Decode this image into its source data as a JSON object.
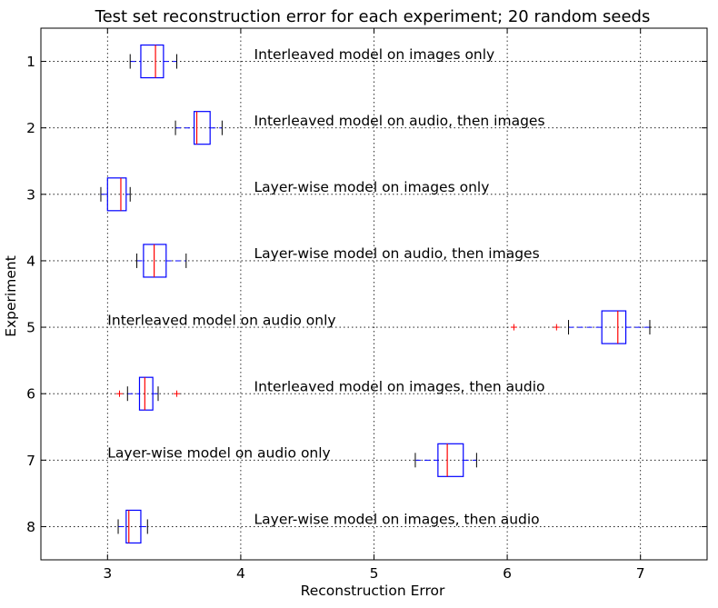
{
  "chart_data": {
    "type": "boxplot",
    "orientation": "horizontal",
    "title": "Test set reconstruction error for each experiment; 20 random seeds",
    "xlabel": "Reconstruction Error",
    "ylabel": "Experiment",
    "xlim": [
      2.5,
      7.5
    ],
    "ylim": [
      8.5,
      0.5
    ],
    "xticks": [
      "3",
      "4",
      "5",
      "6",
      "7"
    ],
    "yticks": [
      "1",
      "2",
      "3",
      "4",
      "5",
      "6",
      "7",
      "8"
    ],
    "grid": true,
    "colors": {
      "box": "#0000ff",
      "median": "#ff0000",
      "flier": "#ff0000"
    },
    "boxes": [
      {
        "experiment": 1,
        "whisker_low": 3.17,
        "q1": 3.25,
        "median": 3.36,
        "q3": 3.42,
        "whisker_high": 3.52,
        "fliers": []
      },
      {
        "experiment": 2,
        "whisker_low": 3.51,
        "q1": 3.65,
        "median": 3.67,
        "q3": 3.77,
        "whisker_high": 3.86,
        "fliers": []
      },
      {
        "experiment": 3,
        "whisker_low": 2.95,
        "q1": 3.0,
        "median": 3.1,
        "q3": 3.14,
        "whisker_high": 3.17,
        "fliers": []
      },
      {
        "experiment": 4,
        "whisker_low": 3.22,
        "q1": 3.27,
        "median": 3.35,
        "q3": 3.44,
        "whisker_high": 3.59,
        "fliers": []
      },
      {
        "experiment": 5,
        "whisker_low": 6.46,
        "q1": 6.71,
        "median": 6.83,
        "q3": 6.89,
        "whisker_high": 7.07,
        "fliers": [
          6.05,
          6.37
        ]
      },
      {
        "experiment": 6,
        "whisker_low": 3.15,
        "q1": 3.24,
        "median": 3.28,
        "q3": 3.34,
        "whisker_high": 3.38,
        "fliers": [
          3.09,
          3.52
        ]
      },
      {
        "experiment": 7,
        "whisker_low": 5.31,
        "q1": 5.48,
        "median": 5.55,
        "q3": 5.67,
        "whisker_high": 5.77,
        "fliers": []
      },
      {
        "experiment": 8,
        "whisker_low": 3.08,
        "q1": 3.14,
        "median": 3.16,
        "q3": 3.25,
        "whisker_high": 3.3,
        "fliers": []
      }
    ],
    "annotations": [
      {
        "text": "Interleaved model on images only",
        "x": 4.1,
        "y": 0.9
      },
      {
        "text": "Interleaved model on audio, then images",
        "x": 4.1,
        "y": 1.9
      },
      {
        "text": "Layer-wise model on images only",
        "x": 4.1,
        "y": 2.9
      },
      {
        "text": "Layer-wise model on audio, then images",
        "x": 4.1,
        "y": 3.9
      },
      {
        "text": "Interleaved model on audio only",
        "x": 3.0,
        "y": 4.9
      },
      {
        "text": "Interleaved model on images, then audio",
        "x": 4.1,
        "y": 5.9
      },
      {
        "text": "Layer-wise model on audio only",
        "x": 3.0,
        "y": 6.9
      },
      {
        "text": "Layer-wise model on images, then audio",
        "x": 4.1,
        "y": 7.9
      }
    ]
  }
}
